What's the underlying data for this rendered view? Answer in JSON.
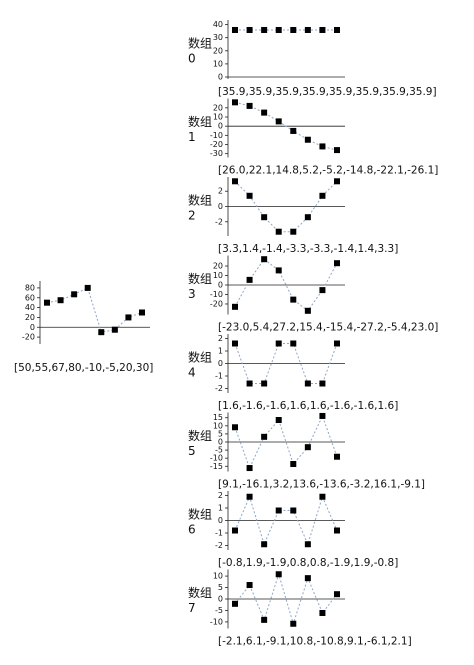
{
  "chart_data": [
    {
      "type": "line",
      "caption": "[50,55,67,80,-10,-5,20,30]",
      "values": [
        50,
        55,
        67,
        80,
        -10,
        -5,
        20,
        30
      ],
      "ylim": [
        -30,
        90
      ],
      "yticks": [
        -20,
        0,
        20,
        40,
        60,
        80
      ],
      "color": "#8ea6c6",
      "marker_color": "#000000"
    },
    {
      "type": "line",
      "title": "数组",
      "subtitle": "0",
      "caption": "[35.9,35.9,35.9,35.9,35.9,35.9,35.9,35.9]",
      "values": [
        35.9,
        35.9,
        35.9,
        35.9,
        35.9,
        35.9,
        35.9,
        35.9
      ],
      "ylim": [
        0,
        42
      ],
      "yticks": [
        0,
        10,
        20,
        30,
        40
      ],
      "color": "#8ea6c6",
      "marker_color": "#000000"
    },
    {
      "type": "line",
      "title": "数组",
      "subtitle": "1",
      "caption": "[26.0,22.1,14.8,5.2,-5.2,-14.8,-22.1,-26.1]",
      "values": [
        26.0,
        22.1,
        14.8,
        5.2,
        -5.2,
        -14.8,
        -22.1,
        -26.1
      ],
      "ylim": [
        -32,
        28
      ],
      "yticks": [
        -30,
        -20,
        -10,
        0,
        10,
        20
      ],
      "color": "#8ea6c6",
      "marker_color": "#000000"
    },
    {
      "type": "line",
      "title": "数组",
      "subtitle": "2",
      "caption": "[3.3,1.4,-1.4,-3.3,-3.3,-1.4,1.4,3.3]",
      "values": [
        3.3,
        1.4,
        -1.4,
        -3.3,
        -3.3,
        -1.4,
        1.4,
        3.3
      ],
      "ylim": [
        -3.6,
        3.6
      ],
      "yticks": [
        -2,
        0,
        2
      ],
      "color": "#8ea6c6",
      "marker_color": "#000000"
    },
    {
      "type": "line",
      "title": "数组",
      "subtitle": "3",
      "caption": "[-23.0,5.4,27.2,15.4,-15.4,-27.2,-5.4,23.0]",
      "values": [
        -23.0,
        5.4,
        27.2,
        15.4,
        -15.4,
        -27.2,
        -5.4,
        23.0
      ],
      "ylim": [
        -29,
        29
      ],
      "yticks": [
        -20,
        -10,
        0,
        10,
        20
      ],
      "color": "#8ea6c6",
      "marker_color": "#000000"
    },
    {
      "type": "line",
      "title": "数组",
      "subtitle": "4",
      "caption": "[1.6,-1.6,-1.6,1.6,1.6,-1.6,-1.6,1.6]",
      "values": [
        1.6,
        -1.6,
        -1.6,
        1.6,
        1.6,
        -1.6,
        -1.6,
        1.6
      ],
      "ylim": [
        -2.2,
        2.2
      ],
      "yticks": [
        -2,
        -1,
        0,
        1,
        2
      ],
      "color": "#8ea6c6",
      "marker_color": "#000000"
    },
    {
      "type": "line",
      "title": "数组",
      "subtitle": "5",
      "caption": "[9.1,-16.1,3.2,13.6,-13.6,-3.2,16.1,-9.1]",
      "values": [
        9.1,
        -16.1,
        3.2,
        13.6,
        -13.6,
        -3.2,
        16.1,
        -9.1
      ],
      "ylim": [
        -17,
        17
      ],
      "yticks": [
        -15,
        -10,
        -5,
        0,
        5,
        10,
        15
      ],
      "color": "#8ea6c6",
      "marker_color": "#000000"
    },
    {
      "type": "line",
      "title": "数组",
      "subtitle": "6",
      "caption": "[-0.8,1.9,-1.9,0.8,0.8,-1.9,1.9,-0.8]",
      "values": [
        -0.8,
        1.9,
        -1.9,
        0.8,
        0.8,
        -1.9,
        1.9,
        -0.8
      ],
      "ylim": [
        -2.2,
        2.2
      ],
      "yticks": [
        -2,
        -1,
        0,
        1,
        2
      ],
      "color": "#8ea6c6",
      "marker_color": "#000000"
    },
    {
      "type": "line",
      "title": "数组",
      "subtitle": "7",
      "caption": "[-2.1,6.1,-9.1,10.8,-10.8,9.1,-6.1,2.1]",
      "values": [
        -2.1,
        6.1,
        -9.1,
        10.8,
        -10.8,
        9.1,
        -6.1,
        2.1
      ],
      "ylim": [
        -12,
        12
      ],
      "yticks": [
        -10,
        -5,
        0,
        5,
        10
      ],
      "color": "#8ea6c6",
      "marker_color": "#000000"
    }
  ]
}
